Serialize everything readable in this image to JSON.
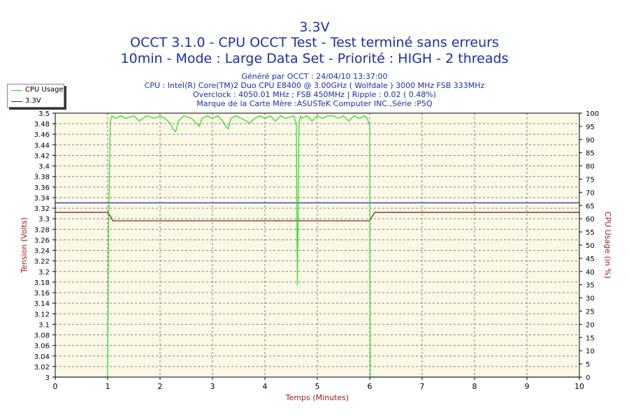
{
  "header": {
    "title1": "3.3V",
    "title2": "OCCT 3.1.0 - CPU OCCT Test - Test terminé sans erreurs",
    "title3": "10min - Mode : Large Data Set - Priorité : HIGH - 2 threads"
  },
  "info": {
    "line1": "Généré par OCCT : 24/04/10 13:37:00",
    "line2": "CPU : Intel(R) Core(TM)2 Duo CPU E8400 @ 3.00GHz ( Wolfdale ) 3000 MHz FSB 333MHz",
    "line3": "Overclock : 4050.01 MHz ; FSB 450MHz | Ripple : 0.02 ( 0.48%)",
    "line4": "Marque de la Carte Mère :ASUSTeK Computer INC.,Série :P5Q"
  },
  "legend": {
    "items": [
      {
        "label": "CPU Usage",
        "color": "#22dd22"
      },
      {
        "label": "3.3V",
        "color": "#7a1010"
      }
    ]
  },
  "colors": {
    "plot_bg": "#fbf8e6",
    "grid": "#808080",
    "voltage_line": "#7a1010",
    "cpu_line": "#22dd22",
    "ref_line": "#1a2fa8",
    "axis_text": "#000000",
    "axis_title_left": "#9a1a1a",
    "axis_title_x": "#9a1a1a"
  },
  "chart_data": {
    "type": "line",
    "xlabel": "Temps (Minutes)",
    "ylabel_left": "Tension (Volts)",
    "ylabel_right": "CPU Usage (in %)",
    "xlim": [
      0,
      10
    ],
    "ylim_left": [
      3,
      3.5
    ],
    "ylim_right": [
      0,
      100
    ],
    "x_ticks": [
      "0",
      "1",
      "2",
      "3",
      "4",
      "5",
      "6",
      "7",
      "8",
      "9",
      "10"
    ],
    "y_left_ticks": [
      "3",
      "3.02",
      "3.04",
      "3.06",
      "3.08",
      "3.1",
      "3.12",
      "3.14",
      "3.16",
      "3.18",
      "3.2",
      "3.22",
      "3.24",
      "3.26",
      "3.28",
      "3.3",
      "3.32",
      "3.34",
      "3.36",
      "3.38",
      "3.4",
      "3.42",
      "3.44",
      "3.46",
      "3.48",
      "3.5"
    ],
    "y_right_ticks": [
      "0",
      "5",
      "10",
      "15",
      "20",
      "25",
      "30",
      "35",
      "40",
      "45",
      "50",
      "55",
      "60",
      "65",
      "70",
      "75",
      "80",
      "85",
      "90",
      "95",
      "100"
    ],
    "grid": true,
    "legend_position": "top-left",
    "reference_line": {
      "axis": "left",
      "value": 3.33
    },
    "series": [
      {
        "name": "3.3V",
        "axis": "left",
        "x": [
          0,
          1.0,
          1.05,
          1.1,
          6.0,
          6.05,
          6.1,
          10
        ],
        "y": [
          3.312,
          3.312,
          3.305,
          3.296,
          3.296,
          3.305,
          3.312,
          3.312
        ]
      },
      {
        "name": "CPU Usage",
        "axis": "right",
        "x": [
          0,
          1.0,
          1.02,
          1.05,
          1.08,
          1.15,
          1.25,
          1.35,
          1.5,
          1.6,
          1.75,
          1.9,
          2.0,
          2.1,
          2.2,
          2.25,
          2.3,
          2.35,
          2.45,
          2.6,
          2.7,
          2.75,
          2.8,
          2.9,
          3.0,
          3.1,
          3.2,
          3.25,
          3.3,
          3.35,
          3.45,
          3.55,
          3.65,
          3.7,
          3.8,
          3.9,
          4.0,
          4.1,
          4.2,
          4.3,
          4.4,
          4.55,
          4.6,
          4.62,
          4.65,
          4.68,
          4.7,
          4.8,
          4.9,
          5.0,
          5.1,
          5.2,
          5.3,
          5.4,
          5.5,
          5.6,
          5.7,
          5.8,
          5.9,
          5.95,
          6.0,
          6.01,
          10
        ],
        "y": [
          0,
          0,
          60,
          97,
          99,
          98,
          99,
          98,
          99,
          97,
          99,
          98,
          99,
          98,
          96,
          94,
          93,
          97,
          99,
          98,
          96,
          95,
          98,
          99,
          98,
          99,
          97,
          95,
          94,
          98,
          99,
          98,
          97,
          96,
          98,
          99,
          98,
          99,
          97,
          99,
          98,
          99,
          96,
          35,
          96,
          99,
          98,
          99,
          97,
          99,
          98,
          99,
          99,
          98,
          99,
          97,
          99,
          98,
          99,
          98,
          95,
          0,
          0
        ]
      }
    ]
  }
}
